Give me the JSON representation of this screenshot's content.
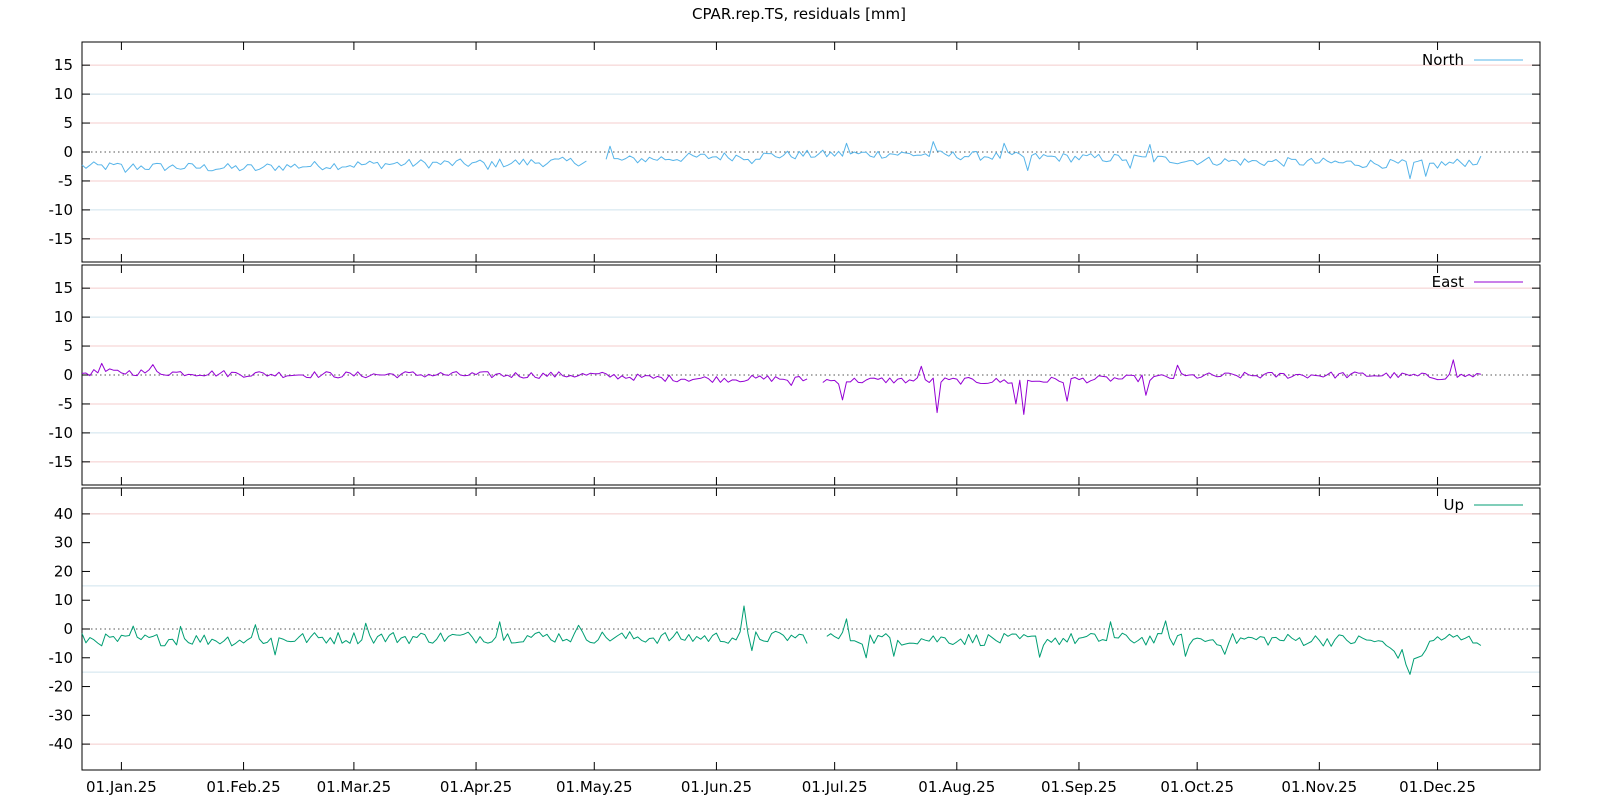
{
  "chart_data": [
    {
      "type": "line",
      "title": "CPAR.rep.TS, residuals [mm]",
      "xlabel": "",
      "ylabel": "",
      "x_range": [
        "2024-12-22",
        "2025-12-27"
      ],
      "x_ticks": [
        "2025-01-01",
        "2025-02-01",
        "2025-03-01",
        "2025-04-01",
        "2025-05-01",
        "2025-06-01",
        "2025-07-01",
        "2025-08-01",
        "2025-09-01",
        "2025-10-01",
        "2025-11-01",
        "2025-12-01"
      ],
      "x_tick_labels": [
        "01.Jan.25",
        "01.Feb.25",
        "01.Mar.25",
        "01.Apr.25",
        "01.May.25",
        "01.Jun.25",
        "01.Jul.25",
        "01.Aug.25",
        "01.Sep.25",
        "01.Oct.25",
        "01.Nov.25",
        "01.Dec.25"
      ],
      "grid": "horizontal",
      "legend_position": "top-right",
      "panels": [
        {
          "id": "north",
          "series": [
            {
              "name": "North",
              "color": "#56b4e9",
              "points": [
                [
                  "2024-12-22",
                  -2.5
                ],
                [
                  "2025-01-01",
                  -2.5
                ],
                [
                  "2025-01-15",
                  -2.6
                ],
                [
                  "2025-02-01",
                  -2.8
                ],
                [
                  "2025-02-15",
                  -2.4
                ],
                [
                  "2025-03-01",
                  -2.2
                ],
                [
                  "2025-03-15",
                  -2.0
                ],
                [
                  "2025-04-01",
                  -2.0
                ],
                [
                  "2025-04-15",
                  -1.8
                ],
                [
                  "2025-04-29",
                  -1.6
                ],
                [
                  "2025-05-04",
                  -1.5
                ],
                [
                  "2025-05-15",
                  -1.2
                ],
                [
                  "2025-06-01",
                  -0.8
                ],
                [
                  "2025-06-15",
                  -0.6
                ],
                [
                  "2025-07-01",
                  -0.4
                ],
                [
                  "2025-07-15",
                  -0.3
                ],
                [
                  "2025-08-01",
                  -0.6
                ],
                [
                  "2025-08-15",
                  -0.8
                ],
                [
                  "2025-09-01",
                  -1.0
                ],
                [
                  "2025-09-15",
                  -1.1
                ],
                [
                  "2025-10-01",
                  -1.5
                ],
                [
                  "2025-10-15",
                  -1.7
                ],
                [
                  "2025-11-01",
                  -1.8
                ],
                [
                  "2025-11-15",
                  -2.0
                ],
                [
                  "2025-12-01",
                  -2.2
                ],
                [
                  "2025-12-12",
                  -1.5
                ]
              ],
              "spikes": [
                [
                  "2025-01-02",
                  -3.5
                ],
                [
                  "2025-02-04",
                  -3.2
                ],
                [
                  "2025-04-04",
                  -3.0
                ],
                [
                  "2025-05-05",
                  1.0
                ],
                [
                  "2025-06-10",
                  -2.0
                ],
                [
                  "2025-07-04",
                  1.5
                ],
                [
                  "2025-07-26",
                  1.8
                ],
                [
                  "2025-08-13",
                  1.5
                ],
                [
                  "2025-08-19",
                  -3.2
                ],
                [
                  "2025-09-19",
                  1.3
                ],
                [
                  "2025-09-14",
                  -2.8
                ],
                [
                  "2025-11-24",
                  -4.6
                ],
                [
                  "2025-11-28",
                  -4.2
                ]
              ]
            }
          ],
          "ylim": [
            -19,
            19
          ],
          "yticks": [
            15,
            10,
            5,
            0,
            -5,
            -10,
            -15
          ],
          "ytick_labels": [
            "15",
            "10",
            "5",
            "0",
            "-5",
            "-10",
            "-15"
          ],
          "gridlines": [
            {
              "y": 15,
              "color": "#f4cccc"
            },
            {
              "y": 10,
              "color": "#cfe3ee"
            },
            {
              "y": 5,
              "color": "#f4cccc"
            },
            {
              "y": 0,
              "color": "#888888",
              "dotted": true
            },
            {
              "y": -5,
              "color": "#f4cccc"
            },
            {
              "y": -10,
              "color": "#cfe3ee"
            },
            {
              "y": -15,
              "color": "#f4cccc"
            }
          ],
          "gap": [
            "2025-04-29",
            "2025-05-04"
          ],
          "noise": 0.8
        },
        {
          "id": "east",
          "series": [
            {
              "name": "East",
              "color": "#9400d3",
              "points": [
                [
                  "2024-12-22",
                  0.4
                ],
                [
                  "2025-01-01",
                  0.5
                ],
                [
                  "2025-01-15",
                  0.4
                ],
                [
                  "2025-02-01",
                  0.2
                ],
                [
                  "2025-02-15",
                  0.1
                ],
                [
                  "2025-03-01",
                  0.0
                ],
                [
                  "2025-03-15",
                  0.1
                ],
                [
                  "2025-04-01",
                  0.0
                ],
                [
                  "2025-04-15",
                  0.0
                ],
                [
                  "2025-05-01",
                  0.0
                ],
                [
                  "2025-05-15",
                  -0.5
                ],
                [
                  "2025-06-01",
                  -0.7
                ],
                [
                  "2025-06-15",
                  -0.6
                ],
                [
                  "2025-06-24",
                  -0.8
                ],
                [
                  "2025-07-01",
                  -1.0
                ],
                [
                  "2025-07-15",
                  -0.9
                ],
                [
                  "2025-08-01",
                  -1.0
                ],
                [
                  "2025-08-15",
                  -1.1
                ],
                [
                  "2025-09-01",
                  -0.8
                ],
                [
                  "2025-09-15",
                  -0.6
                ],
                [
                  "2025-10-01",
                  -0.2
                ],
                [
                  "2025-10-15",
                  -0.1
                ],
                [
                  "2025-11-01",
                  0.0
                ],
                [
                  "2025-11-15",
                  0.0
                ],
                [
                  "2025-12-01",
                  -0.3
                ],
                [
                  "2025-12-12",
                  0.0
                ]
              ],
              "spikes": [
                [
                  "2024-12-27",
                  2.0
                ],
                [
                  "2025-01-09",
                  1.8
                ],
                [
                  "2025-07-03",
                  -4.3
                ],
                [
                  "2025-07-23",
                  1.5
                ],
                [
                  "2025-07-27",
                  -6.5
                ],
                [
                  "2025-08-16",
                  -5.0
                ],
                [
                  "2025-08-18",
                  -6.8
                ],
                [
                  "2025-08-29",
                  -4.5
                ],
                [
                  "2025-09-18",
                  -3.5
                ],
                [
                  "2025-09-26",
                  1.7
                ],
                [
                  "2025-12-05",
                  2.6
                ],
                [
                  "2025-06-20",
                  -1.8
                ]
              ]
            }
          ],
          "ylim": [
            -19,
            19
          ],
          "yticks": [
            15,
            10,
            5,
            0,
            -5,
            -10,
            -15
          ],
          "ytick_labels": [
            "15",
            "10",
            "5",
            "0",
            "-5",
            "-10",
            "-15"
          ],
          "gridlines": [
            {
              "y": 15,
              "color": "#f4cccc"
            },
            {
              "y": 10,
              "color": "#cfe3ee"
            },
            {
              "y": 5,
              "color": "#f4cccc"
            },
            {
              "y": 0,
              "color": "#888888",
              "dotted": true
            },
            {
              "y": -5,
              "color": "#f4cccc"
            },
            {
              "y": -10,
              "color": "#cfe3ee"
            },
            {
              "y": -15,
              "color": "#f4cccc"
            }
          ],
          "gap": [
            "2025-06-24",
            "2025-06-28"
          ],
          "noise": 0.6
        },
        {
          "id": "up",
          "series": [
            {
              "name": "Up",
              "color": "#009e73",
              "points": [
                [
                  "2024-12-22",
                  -3.5
                ],
                [
                  "2025-01-01",
                  -4.0
                ],
                [
                  "2025-01-15",
                  -3.5
                ],
                [
                  "2025-02-01",
                  -3.8
                ],
                [
                  "2025-02-15",
                  -3.3
                ],
                [
                  "2025-03-01",
                  -3.0
                ],
                [
                  "2025-03-15",
                  -3.0
                ],
                [
                  "2025-04-01",
                  -2.8
                ],
                [
                  "2025-04-15",
                  -2.6
                ],
                [
                  "2025-05-01",
                  -2.8
                ],
                [
                  "2025-05-15",
                  -3.0
                ],
                [
                  "2025-06-01",
                  -3.0
                ],
                [
                  "2025-06-15",
                  -2.8
                ],
                [
                  "2025-07-01",
                  -3.0
                ],
                [
                  "2025-07-15",
                  -3.5
                ],
                [
                  "2025-08-01",
                  -3.5
                ],
                [
                  "2025-08-15",
                  -3.8
                ],
                [
                  "2025-09-01",
                  -3.5
                ],
                [
                  "2025-09-15",
                  -3.5
                ],
                [
                  "2025-10-01",
                  -3.8
                ],
                [
                  "2025-10-15",
                  -3.6
                ],
                [
                  "2025-11-01",
                  -3.8
                ],
                [
                  "2025-11-15",
                  -4.0
                ],
                [
                  "2025-11-22",
                  -9.0
                ],
                [
                  "2025-11-24",
                  -14.5
                ],
                [
                  "2025-11-27",
                  -8.0
                ],
                [
                  "2025-12-01",
                  -3.0
                ],
                [
                  "2025-12-12",
                  -4.0
                ]
              ],
              "spikes": [
                [
                  "2025-01-04",
                  1.0
                ],
                [
                  "2025-01-16",
                  0.9
                ],
                [
                  "2025-02-04",
                  1.5
                ],
                [
                  "2025-02-09",
                  -9.0
                ],
                [
                  "2025-03-04",
                  2.0
                ],
                [
                  "2025-04-07",
                  2.5
                ],
                [
                  "2025-04-27",
                  1.3
                ],
                [
                  "2025-06-08",
                  8.0
                ],
                [
                  "2025-06-10",
                  -7.5
                ],
                [
                  "2025-07-04",
                  3.5
                ],
                [
                  "2025-07-09",
                  -10.0
                ],
                [
                  "2025-07-16",
                  -9.5
                ],
                [
                  "2025-08-22",
                  -9.8
                ],
                [
                  "2025-09-09",
                  2.5
                ],
                [
                  "2025-09-23",
                  2.8
                ],
                [
                  "2025-09-28",
                  -9.5
                ],
                [
                  "2025-10-08",
                  -8.8
                ]
              ]
            }
          ],
          "ylim": [
            -49,
            49
          ],
          "yticks": [
            40,
            30,
            20,
            10,
            0,
            -10,
            -20,
            -30,
            -40
          ],
          "ytick_labels": [
            "40",
            "30",
            "20",
            "10",
            "0",
            "-10",
            "-20",
            "-30",
            "-40"
          ],
          "gridlines": [
            {
              "y": 40,
              "color": "#f4cccc"
            },
            {
              "y": 15,
              "color": "#cfe3ee"
            },
            {
              "y": 0,
              "color": "#888888",
              "dotted": true
            },
            {
              "y": -15,
              "color": "#cfe3ee"
            },
            {
              "y": -40,
              "color": "#f4cccc"
            }
          ],
          "gap": [
            "2025-06-24",
            "2025-06-29"
          ],
          "noise": 2.2
        }
      ]
    }
  ]
}
